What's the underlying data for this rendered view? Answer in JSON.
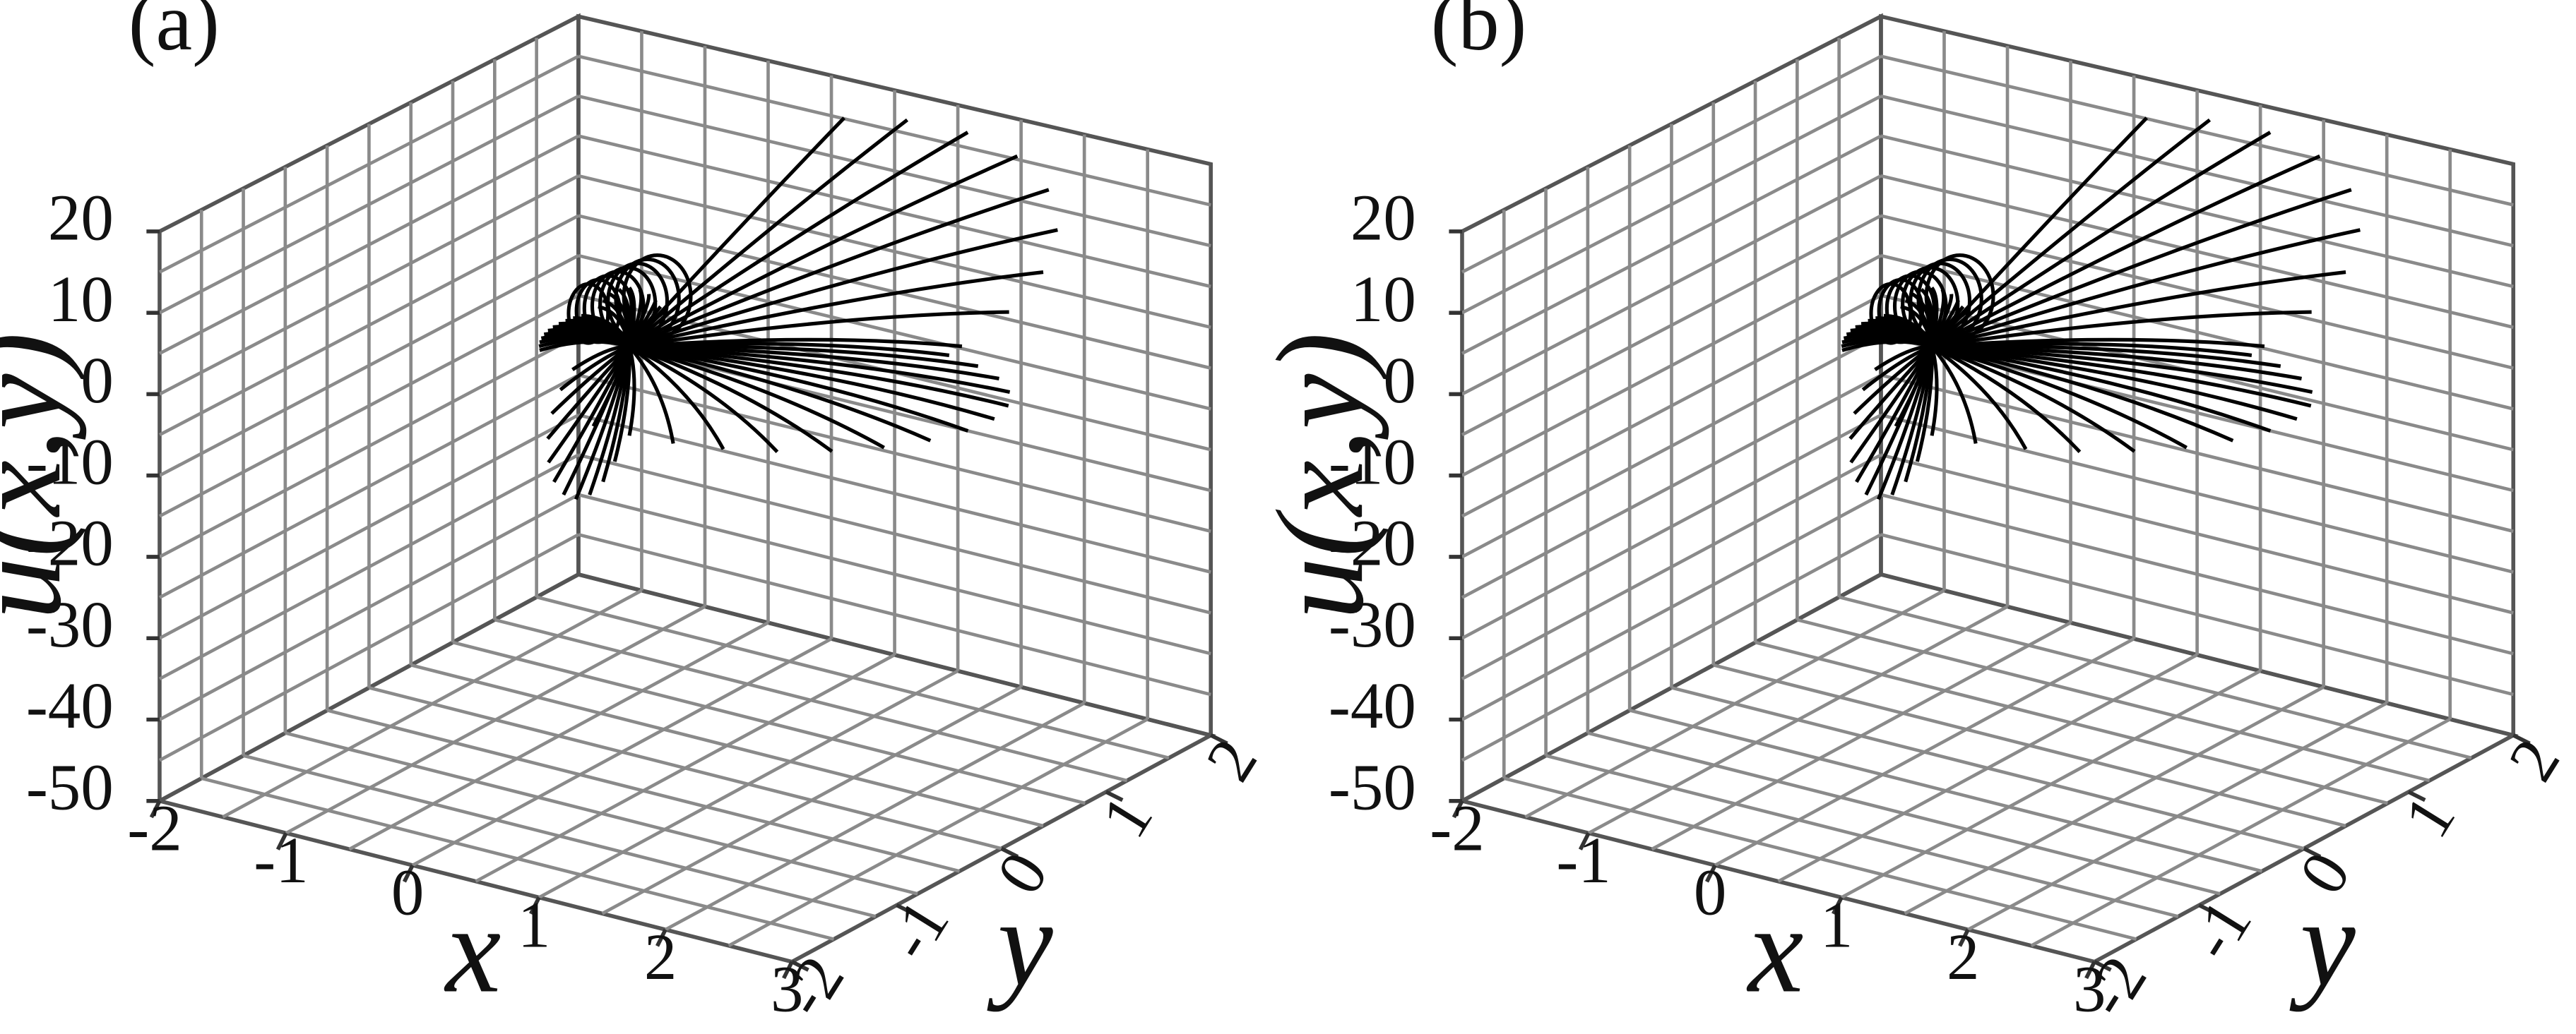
{
  "chart_data": [
    {
      "panel": "(a)",
      "type": "3d-wireframe-surface",
      "xlabel": "x",
      "ylabel": "y",
      "zlabel": "u(x,y)",
      "xlim": [
        -2,
        3
      ],
      "ylim": [
        -2,
        2
      ],
      "zlim": [
        -50,
        20
      ],
      "xticks": [
        "-2",
        "-1",
        "0",
        "1",
        "2",
        "3"
      ],
      "yticks": [
        "-2",
        "-1",
        "0",
        "1",
        "2"
      ],
      "zticks": [
        "20",
        "10",
        "0",
        "-10",
        "-20",
        "-30",
        "-40",
        "-50"
      ],
      "grid": true,
      "surface": {
        "radial_lines": 56,
        "shape": "rays fanning out from a spike near the origin, long rays rising toward +x/+y up to u ≈ 19, short rays dipping to u ≈ -18"
      }
    },
    {
      "panel": "(b)",
      "type": "3d-wireframe-surface",
      "xlabel": "x",
      "ylabel": "y",
      "zlabel": "u(x,y)",
      "xlim": [
        -2,
        3
      ],
      "ylim": [
        -2,
        2
      ],
      "zlim": [
        -50,
        20
      ],
      "xticks": [
        "-2",
        "-1",
        "0",
        "1",
        "2",
        "3"
      ],
      "yticks": [
        "-2",
        "-1",
        "0",
        "1",
        "2"
      ],
      "zticks": [
        "20",
        "10",
        "0",
        "-10",
        "-20",
        "-30",
        "-40",
        "-50"
      ],
      "grid": true,
      "surface": {
        "radial_lines": 56,
        "shape": "rays fanning out from a spike near the origin, long rays rising toward +x/+y up to u ≈ 19, short rays dipping to u ≈ -18"
      }
    }
  ]
}
